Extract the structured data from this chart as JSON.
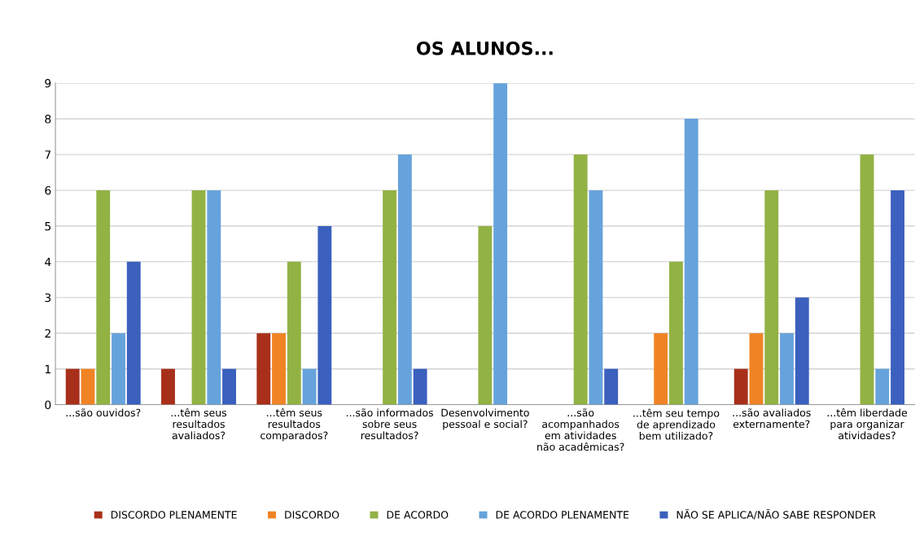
{
  "chart_data": {
    "type": "bar",
    "title": "OS ALUNOS...",
    "categories": [
      "...são ouvidos?",
      "...têm seus\nresultados\navaliados?",
      "...têm seus\nresultados\ncomparados?",
      "...são informados\nsobre seus\nresultados?",
      "Desenvolvimento\npessoal e social?",
      "...são\nacompanhados\nem atividades\nnão acadêmicas?",
      "...têm seu tempo\nde aprendizado\nbem utilizado?",
      "...são avaliados\nexternamente?",
      "...têm liberdade\npara organizar\natividades?"
    ],
    "series": [
      {
        "name": "DISCORDO PLENAMENTE",
        "color": "#a8301a",
        "values": [
          1,
          1,
          2,
          0,
          0,
          0,
          0,
          1,
          0
        ]
      },
      {
        "name": "DISCORDO",
        "color": "#f08424",
        "values": [
          1,
          0,
          2,
          0,
          0,
          0,
          2,
          2,
          0
        ]
      },
      {
        "name": "DE ACORDO",
        "color": "#92b244",
        "values": [
          6,
          6,
          4,
          6,
          5,
          7,
          4,
          6,
          7
        ]
      },
      {
        "name": "DE ACORDO PLENAMENTE",
        "color": "#66a3dc",
        "values": [
          2,
          6,
          1,
          7,
          9,
          6,
          8,
          2,
          1
        ]
      },
      {
        "name": "NÃO SE APLICA/NÃO SABE RESPONDER",
        "color": "#3b60bd",
        "values": [
          4,
          1,
          5,
          1,
          0,
          1,
          0,
          3,
          6
        ]
      }
    ],
    "ylim": [
      0,
      9
    ],
    "yticks": [
      0,
      1,
      2,
      3,
      4,
      5,
      6,
      7,
      8,
      9
    ],
    "grid": "y",
    "legend": "bottom"
  }
}
